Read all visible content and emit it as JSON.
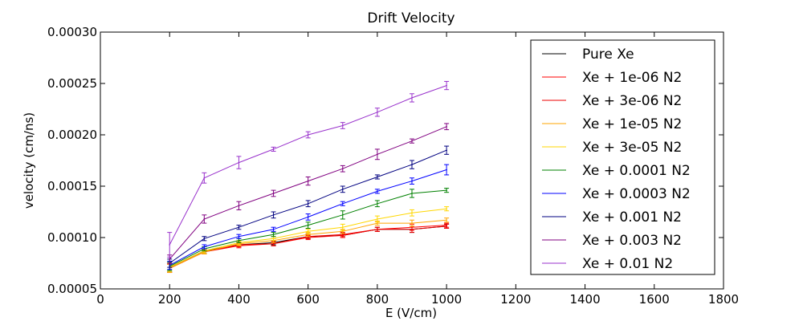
{
  "chart_data": {
    "type": "line",
    "title": "Drift Velocity",
    "xlabel": "E (V/cm)",
    "ylabel": "velocity (cm/ns)",
    "xlim": [
      0,
      1800
    ],
    "ylim": [
      5e-05,
      0.0003
    ],
    "xticks": [
      0,
      200,
      400,
      600,
      800,
      1000,
      1200,
      1400,
      1600,
      1800
    ],
    "xtick_labels": [
      "0",
      "200",
      "400",
      "600",
      "800",
      "1000",
      "1200",
      "1400",
      "1600",
      "1800"
    ],
    "yticks": [
      5e-05,
      0.0001,
      0.00015,
      0.0002,
      0.00025,
      0.0003
    ],
    "ytick_labels": [
      "0.00005",
      "0.00010",
      "0.00015",
      "0.00020",
      "0.00025",
      "0.00030"
    ],
    "grid": false,
    "legend_position": "upper-right",
    "x": [
      200,
      300,
      400,
      500,
      600,
      700,
      800,
      900,
      1000
    ],
    "series": [
      {
        "name": "Pure Xe",
        "color": "#000000",
        "values": [
          7.1e-05,
          8.7e-05,
          9.3e-05,
          9.5e-05,
          0.000101,
          0.000102,
          0.000108,
          0.000108,
          0.000111
        ],
        "errors": [
          4e-06,
          2e-06,
          2e-06,
          2e-06,
          2e-06,
          2e-06,
          2e-06,
          3e-06,
          2e-06
        ]
      },
      {
        "name": "Xe + 1e-06 N2",
        "color": "#ff0000",
        "values": [
          7e-05,
          8.6e-05,
          9.2e-05,
          9.4e-05,
          0.0001,
          0.000102,
          0.000108,
          0.00011,
          0.000112
        ],
        "errors": [
          4e-06,
          2e-06,
          2e-06,
          2e-06,
          2e-06,
          2e-06,
          2e-06,
          3e-06,
          2e-06
        ]
      },
      {
        "name": "Xe + 3e-06 N2",
        "color": "#ee0000",
        "values": [
          7e-05,
          8.6e-05,
          9.3e-05,
          9.4e-05,
          0.000101,
          0.000103,
          0.000108,
          0.000108,
          0.000111
        ],
        "errors": [
          4e-06,
          2e-06,
          2e-06,
          2e-06,
          2e-06,
          2e-06,
          2e-06,
          3e-06,
          2e-06
        ]
      },
      {
        "name": "Xe + 1e-05 N2",
        "color": "#ffa500",
        "values": [
          7e-05,
          8.6e-05,
          9.4e-05,
          9.7e-05,
          0.000103,
          0.000106,
          0.000114,
          0.000114,
          0.000117
        ],
        "errors": [
          4e-06,
          2e-06,
          2e-06,
          2e-06,
          2e-06,
          2e-06,
          2e-06,
          3e-06,
          2e-06
        ]
      },
      {
        "name": "Xe + 3e-05 N2",
        "color": "#ffd700",
        "values": [
          7.1e-05,
          8.7e-05,
          9.5e-05,
          9.9e-05,
          0.000106,
          0.00011,
          0.000118,
          0.000124,
          0.000128
        ],
        "errors": [
          4e-06,
          2e-06,
          2e-06,
          2e-06,
          2e-06,
          3e-06,
          3e-06,
          3e-06,
          2e-06
        ]
      },
      {
        "name": "Xe + 0.0001 N2",
        "color": "#008000",
        "values": [
          7.2e-05,
          8.9e-05,
          9.7e-05,
          0.000103,
          0.000112,
          0.000122,
          0.000133,
          0.000143,
          0.000146
        ],
        "errors": [
          4e-06,
          2e-06,
          2e-06,
          2e-06,
          3e-06,
          4e-06,
          3e-06,
          4e-06,
          2e-06
        ]
      },
      {
        "name": "Xe + 0.0003 N2",
        "color": "#0000ff",
        "values": [
          7.3e-05,
          9.1e-05,
          0.000101,
          0.000108,
          0.00012,
          0.000133,
          0.000145,
          0.000155,
          0.000166
        ],
        "errors": [
          4e-06,
          2e-06,
          2e-06,
          2e-06,
          3e-06,
          2e-06,
          2e-06,
          3e-06,
          5e-06
        ]
      },
      {
        "name": "Xe + 0.001 N2",
        "color": "#000080",
        "values": [
          7.5e-05,
          9.9e-05,
          0.00011,
          0.000122,
          0.000133,
          0.000147,
          0.000159,
          0.000171,
          0.000185
        ],
        "errors": [
          4e-06,
          2e-06,
          2e-06,
          3e-06,
          3e-06,
          3e-06,
          2e-06,
          4e-06,
          4e-06
        ]
      },
      {
        "name": "Xe + 0.003 N2",
        "color": "#800080",
        "values": [
          7.9e-05,
          0.000118,
          0.000131,
          0.000143,
          0.000155,
          0.000167,
          0.000181,
          0.000194,
          0.000208
        ],
        "errors": [
          4e-06,
          4e-06,
          4e-06,
          3e-06,
          4e-06,
          3e-06,
          5e-06,
          2e-06,
          3e-06
        ]
      },
      {
        "name": "Xe + 0.01 N2",
        "color": "#9932cc",
        "values": [
          9.3e-05,
          0.000158,
          0.000173,
          0.000186,
          0.0002,
          0.000209,
          0.000222,
          0.000236,
          0.000248
        ],
        "errors": [
          1.2e-05,
          5e-06,
          6e-06,
          2e-06,
          3e-06,
          3e-06,
          4e-06,
          4e-06,
          4e-06
        ]
      }
    ]
  }
}
